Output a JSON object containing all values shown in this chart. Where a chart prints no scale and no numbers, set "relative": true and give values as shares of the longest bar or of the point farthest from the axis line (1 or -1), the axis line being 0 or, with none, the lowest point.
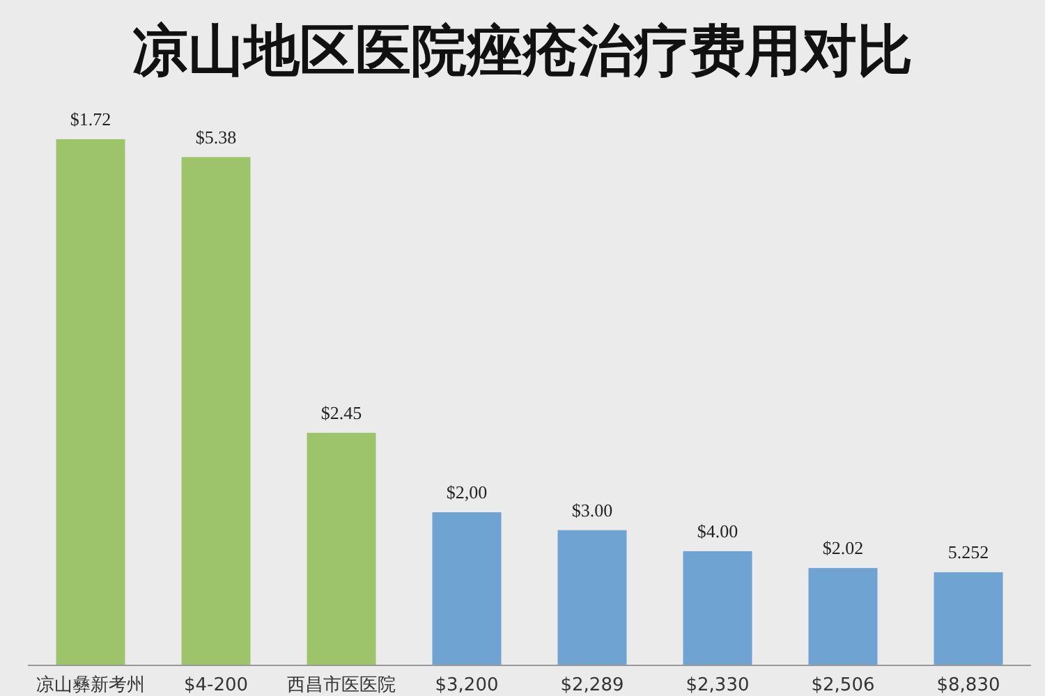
{
  "chart_data": {
    "type": "bar",
    "title": "凉山地区医院痤疮治疗费用对比",
    "categories": [
      "凉山彝新考州",
      "$4-200",
      "西昌市医医院",
      "$3,200",
      "$2,289",
      "$2,330",
      "$2,506",
      "$8,830"
    ],
    "values": [
      1,
      0.966,
      0.442,
      0.291,
      0.257,
      0.217,
      0.185,
      0.177
    ],
    "colors": [
      "#9dc36b",
      "#9dc36b",
      "#9dc36b",
      "#6fa3d2",
      "#6fa3d2",
      "#6fa3d2",
      "#6fa3d2",
      "#6fa3d2"
    ],
    "annotations": [
      "$1.72",
      "$5.38",
      "$2.45",
      "$2,00",
      "$3.00",
      "$4.00",
      "$2.02",
      "5.252"
    ],
    "relative": true
  }
}
